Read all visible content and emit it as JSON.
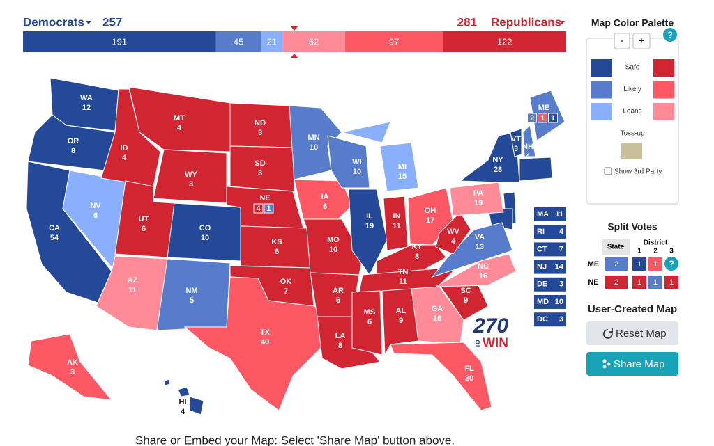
{
  "header": {
    "dem_label": "Democrats",
    "dem_total": 257,
    "rep_total": 281,
    "rep_label": "Republicans"
  },
  "bar": [
    {
      "value": 191,
      "color": "#244999"
    },
    {
      "value": 45,
      "color": "#577ccc"
    },
    {
      "value": 21,
      "color": "#8aafff"
    },
    {
      "value": 62,
      "color": "#ff8b98"
    },
    {
      "value": 97,
      "color": "#ff5865"
    },
    {
      "value": 122,
      "color": "#d22532"
    }
  ],
  "states": [
    {
      "abbr": "WA",
      "ev": 12,
      "color": "#244999"
    },
    {
      "abbr": "OR",
      "ev": 8,
      "color": "#244999"
    },
    {
      "abbr": "CA",
      "ev": 54,
      "color": "#244999"
    },
    {
      "abbr": "NV",
      "ev": 6,
      "color": "#8aafff"
    },
    {
      "abbr": "ID",
      "ev": 4,
      "color": "#d22532"
    },
    {
      "abbr": "MT",
      "ev": 4,
      "color": "#d22532"
    },
    {
      "abbr": "WY",
      "ev": 3,
      "color": "#d22532"
    },
    {
      "abbr": "UT",
      "ev": 6,
      "color": "#d22532"
    },
    {
      "abbr": "CO",
      "ev": 10,
      "color": "#244999"
    },
    {
      "abbr": "AZ",
      "ev": 11,
      "color": "#ff8b98"
    },
    {
      "abbr": "NM",
      "ev": 5,
      "color": "#577ccc"
    },
    {
      "abbr": "ND",
      "ev": 3,
      "color": "#d22532"
    },
    {
      "abbr": "SD",
      "ev": 3,
      "color": "#d22532"
    },
    {
      "abbr": "NE",
      "ev": 4,
      "color": "#d22532",
      "districts": [
        {
          "ev": 1,
          "color": "#577ccc"
        }
      ]
    },
    {
      "abbr": "KS",
      "ev": 6,
      "color": "#d22532"
    },
    {
      "abbr": "OK",
      "ev": 7,
      "color": "#d22532"
    },
    {
      "abbr": "TX",
      "ev": 40,
      "color": "#ff5865"
    },
    {
      "abbr": "MN",
      "ev": 10,
      "color": "#577ccc"
    },
    {
      "abbr": "IA",
      "ev": 6,
      "color": "#ff5865"
    },
    {
      "abbr": "MO",
      "ev": 10,
      "color": "#d22532"
    },
    {
      "abbr": "AR",
      "ev": 6,
      "color": "#d22532"
    },
    {
      "abbr": "LA",
      "ev": 8,
      "color": "#d22532"
    },
    {
      "abbr": "WI",
      "ev": 10,
      "color": "#577ccc"
    },
    {
      "abbr": "IL",
      "ev": 19,
      "color": "#244999"
    },
    {
      "abbr": "MI",
      "ev": 15,
      "color": "#8aafff"
    },
    {
      "abbr": "IN",
      "ev": 11,
      "color": "#d22532"
    },
    {
      "abbr": "OH",
      "ev": 17,
      "color": "#ff5865"
    },
    {
      "abbr": "KY",
      "ev": 8,
      "color": "#d22532"
    },
    {
      "abbr": "TN",
      "ev": 11,
      "color": "#d22532"
    },
    {
      "abbr": "MS",
      "ev": 6,
      "color": "#d22532"
    },
    {
      "abbr": "AL",
      "ev": 9,
      "color": "#d22532"
    },
    {
      "abbr": "GA",
      "ev": 16,
      "color": "#ff8b98"
    },
    {
      "abbr": "FL",
      "ev": 30,
      "color": "#ff5865"
    },
    {
      "abbr": "SC",
      "ev": 9,
      "color": "#d22532"
    },
    {
      "abbr": "NC",
      "ev": 16,
      "color": "#ff8b98"
    },
    {
      "abbr": "VA",
      "ev": 13,
      "color": "#577ccc"
    },
    {
      "abbr": "WV",
      "ev": 4,
      "color": "#d22532"
    },
    {
      "abbr": "PA",
      "ev": 19,
      "color": "#ff8b98"
    },
    {
      "abbr": "NY",
      "ev": 28,
      "color": "#244999"
    },
    {
      "abbr": "VT",
      "ev": 3,
      "color": "#244999"
    },
    {
      "abbr": "NH",
      "ev": 4,
      "color": "#577ccc"
    },
    {
      "abbr": "ME",
      "ev": 2,
      "color": "#577ccc",
      "districts": [
        {
          "ev": 1,
          "color": "#ff5865"
        },
        {
          "ev": 1,
          "color": "#244999"
        }
      ]
    },
    {
      "abbr": "AK",
      "ev": 3,
      "color": "#ff5865"
    },
    {
      "abbr": "HI",
      "ev": 4,
      "color": "#244999"
    }
  ],
  "small_states": [
    {
      "abbr": "MA",
      "ev": 11
    },
    {
      "abbr": "RI",
      "ev": 4
    },
    {
      "abbr": "CT",
      "ev": 7
    },
    {
      "abbr": "NJ",
      "ev": 14
    },
    {
      "abbr": "DE",
      "ev": 3
    },
    {
      "abbr": "MD",
      "ev": 10
    },
    {
      "abbr": "DC",
      "ev": 3
    }
  ],
  "small_state_color": "#244999",
  "palette": {
    "title": "Map Color Palette",
    "minus": "-",
    "plus": "+",
    "help": "?",
    "rows": [
      {
        "label": "Safe",
        "dem": "#244999",
        "rep": "#d22532"
      },
      {
        "label": "Likely",
        "dem": "#577ccc",
        "rep": "#ff5865"
      },
      {
        "label": "Leans",
        "dem": "#8aafff",
        "rep": "#ff8b98"
      }
    ],
    "tossup": {
      "label": "Toss-up",
      "color": "#c9c09b"
    },
    "third_party": "Show 3rd Party"
  },
  "split_votes": {
    "title": "Split Votes",
    "state_header": "State",
    "district_header": "District",
    "district_numbers": [
      1,
      2,
      3
    ],
    "rows": [
      {
        "state": "ME",
        "state_ev": 2,
        "state_color": "#577ccc",
        "districts": [
          {
            "ev": 1,
            "color": "#244999"
          },
          {
            "ev": 1,
            "color": "#ff5865"
          }
        ],
        "help": "?"
      },
      {
        "state": "NE",
        "state_ev": 2,
        "state_color": "#d22532",
        "districts": [
          {
            "ev": 1,
            "color": "#d22532"
          },
          {
            "ev": 1,
            "color": "#577ccc"
          },
          {
            "ev": 1,
            "color": "#d22532"
          }
        ]
      }
    ]
  },
  "user_map": {
    "title": "User-Created Map",
    "reset": "Reset Map",
    "share": "Share Map"
  },
  "logo": {
    "number": "270",
    "to": "TO",
    "win": "WIN"
  },
  "footer": "Share or Embed your Map: Select 'Share Map' button above."
}
